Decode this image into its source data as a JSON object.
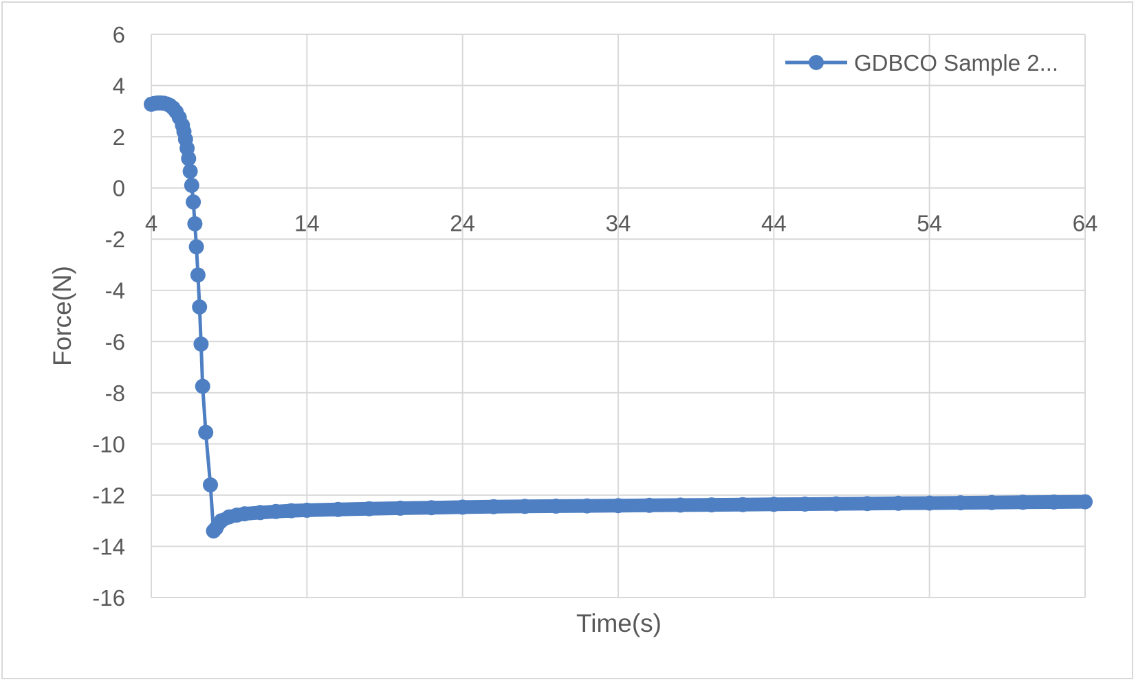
{
  "chart_data": {
    "type": "scatter",
    "title": "",
    "xlabel": "Time(s)",
    "ylabel": "Force(N)",
    "xlim": [
      4,
      64
    ],
    "ylim": [
      -16,
      6
    ],
    "x_ticks": [
      4,
      14,
      24,
      34,
      44,
      54,
      64
    ],
    "y_ticks": [
      6,
      4,
      2,
      0,
      -2,
      -4,
      -6,
      -8,
      -10,
      -12,
      -14,
      -16
    ],
    "grid": true,
    "legend": "top-right",
    "colors": {
      "series": "#4e7fc2",
      "grid": "#d9d9d9",
      "text": "#595959"
    },
    "series": [
      {
        "name": "GDBCO Sample 2...",
        "x": [
          4.0,
          4.2,
          4.4,
          4.6,
          4.8,
          5.0,
          5.2,
          5.4,
          5.6,
          5.8,
          6.0,
          6.1,
          6.2,
          6.3,
          6.4,
          6.5,
          6.6,
          6.7,
          6.8,
          6.9,
          7.0,
          7.1,
          7.2,
          7.3,
          7.5,
          7.8,
          8.0,
          8.15,
          8.5,
          9.0,
          9.5,
          10.0,
          11.0,
          12.0,
          13.0,
          14.0,
          16.0,
          18.0,
          20.0,
          22.0,
          24.0,
          26.0,
          28.0,
          30.0,
          32.0,
          34.0,
          36.0,
          38.0,
          40.0,
          42.0,
          44.0,
          46.0,
          48.0,
          50.0,
          52.0,
          54.0,
          56.0,
          58.0,
          60.0,
          62.0,
          64.0
        ],
        "y": [
          3.27,
          3.3,
          3.32,
          3.32,
          3.31,
          3.28,
          3.22,
          3.12,
          2.97,
          2.75,
          2.45,
          2.2,
          1.9,
          1.55,
          1.15,
          0.65,
          0.1,
          -0.55,
          -1.4,
          -2.3,
          -3.4,
          -4.65,
          -6.1,
          -7.75,
          -9.55,
          -11.6,
          -13.4,
          -13.3,
          -13.0,
          -12.85,
          -12.78,
          -12.73,
          -12.68,
          -12.64,
          -12.61,
          -12.59,
          -12.56,
          -12.53,
          -12.51,
          -12.49,
          -12.47,
          -12.45,
          -12.44,
          -12.43,
          -12.42,
          -12.41,
          -12.4,
          -12.39,
          -12.38,
          -12.37,
          -12.36,
          -12.35,
          -12.34,
          -12.33,
          -12.32,
          -12.31,
          -12.3,
          -12.29,
          -12.28,
          -12.27,
          -12.26
        ]
      }
    ]
  }
}
